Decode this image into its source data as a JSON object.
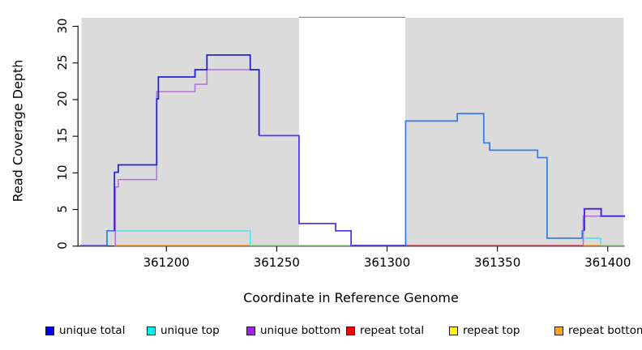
{
  "figure": {
    "y_axis": {
      "label": "Read Coverage Depth",
      "ticks": [
        0,
        5,
        10,
        15,
        20,
        25,
        30
      ]
    },
    "x_axis": {
      "label": "Coordinate in Reference Genome",
      "ticks": [
        361200,
        361250,
        361300,
        361350,
        361400
      ]
    },
    "legend": [
      {
        "label": "unique total",
        "color": "#0000F5"
      },
      {
        "label": "unique top",
        "color": "#00F0F0"
      },
      {
        "label": "unique bottom",
        "color": "#A423E8"
      },
      {
        "label": "repeat total",
        "color": "#F40000"
      },
      {
        "label": "repeat top",
        "color": "#FFF500"
      },
      {
        "label": "repeat bottom",
        "color": "#FFA321"
      }
    ],
    "colors": {
      "shade": "#DBDBDB",
      "axis": "#000000",
      "gap_border": "#909090",
      "background": "#FFFFFF"
    },
    "shaded_regions": [
      [
        361161.5,
        361260.1
      ],
      [
        361308.2,
        361407.2
      ]
    ],
    "gap_border": {
      "from": 361260.1,
      "to": 361308.2
    }
  },
  "plot_lines": [
    {
      "name": "baseline-start-violet",
      "color": "#6C5AD8",
      "width": 1.6,
      "points": [
        [
          361161,
          0
        ],
        [
          361173.1,
          0
        ]
      ]
    },
    {
      "name": "baseline-red",
      "color": "#D84E66",
      "width": 1.4,
      "points": [
        [
          361308.4,
          0
        ],
        [
          361388.4,
          0
        ]
      ]
    },
    {
      "name": "baseline-green-mid",
      "color": "#93DA93",
      "width": 1.4,
      "points": [
        [
          361237.5,
          0
        ],
        [
          361284,
          0
        ]
      ]
    },
    {
      "name": "baseline-green-right",
      "color": "#93DA93",
      "width": 1.4,
      "points": [
        [
          361397,
          0
        ],
        [
          361407.5,
          0
        ]
      ]
    },
    {
      "name": "baseline-orange-left",
      "color": "#FF9E2A",
      "width": 1.6,
      "points": [
        [
          361176.5,
          0
        ],
        [
          361237.5,
          0
        ]
      ]
    },
    {
      "name": "baseline-orange-right",
      "color": "#FF9E2A",
      "width": 1.6,
      "points": [
        [
          361388.8,
          0
        ],
        [
          361397,
          0
        ]
      ]
    },
    {
      "name": "cyan-left",
      "color": "#45E2E8",
      "width": 1.4,
      "points": [
        [
          361173.1,
          2
        ],
        [
          361238,
          2
        ],
        [
          361238,
          0.15
        ]
      ]
    },
    {
      "name": "cyan-right",
      "color": "#45E2E8",
      "width": 1.4,
      "points": [
        [
          361389.4,
          1
        ],
        [
          361396.8,
          1
        ],
        [
          361396.8,
          0.15
        ]
      ]
    },
    {
      "name": "purple-left",
      "color": "#B66BDF",
      "width": 1.5,
      "points": [
        [
          361176.9,
          0
        ],
        [
          361176.9,
          8
        ],
        [
          361178.2,
          8
        ],
        [
          361178.2,
          9
        ],
        [
          361195.6,
          9
        ],
        [
          361195.6,
          21
        ],
        [
          361213,
          21
        ],
        [
          361213,
          22
        ],
        [
          361218.4,
          22
        ],
        [
          361218.4,
          24
        ],
        [
          361242,
          24
        ],
        [
          361242,
          15
        ]
      ]
    },
    {
      "name": "purple-right",
      "color": "#B66BDF",
      "width": 1.5,
      "points": [
        [
          361388.9,
          0
        ],
        [
          361388.9,
          4
        ],
        [
          361407.5,
          4
        ]
      ]
    },
    {
      "name": "blue-left-rise",
      "color": "#2F86EC",
      "width": 1.8,
      "points": [
        [
          361173.1,
          0
        ],
        [
          361173.1,
          2
        ],
        [
          361176.5,
          2
        ]
      ]
    },
    {
      "name": "blue-left-main",
      "color": "#2222D8",
      "width": 1.8,
      "points": [
        [
          361176.5,
          2
        ],
        [
          361176.5,
          10
        ],
        [
          361178.2,
          10
        ],
        [
          361178.2,
          11
        ],
        [
          361195.6,
          11
        ],
        [
          361195.6,
          20
        ],
        [
          361196.4,
          20
        ],
        [
          361196.4,
          23
        ],
        [
          361213,
          23
        ],
        [
          361213,
          24
        ],
        [
          361218.4,
          24
        ],
        [
          361218.4,
          26
        ],
        [
          361238,
          26
        ],
        [
          361238,
          24
        ],
        [
          361242,
          24
        ],
        [
          361242,
          15
        ]
      ]
    },
    {
      "name": "blue-gap-violet",
      "color": "#5638E0",
      "width": 1.8,
      "points": [
        [
          361242,
          15
        ],
        [
          361260.1,
          15
        ],
        [
          361260.1,
          3
        ],
        [
          361276.7,
          3
        ],
        [
          361276.7,
          2
        ],
        [
          361283.7,
          2
        ],
        [
          361283.7,
          0
        ],
        [
          361308,
          0
        ]
      ]
    },
    {
      "name": "blue-right-main",
      "color": "#3D7DE8",
      "width": 1.8,
      "points": [
        [
          361308.4,
          0
        ],
        [
          361308.4,
          17
        ],
        [
          361331.8,
          17
        ],
        [
          361331.8,
          18
        ],
        [
          361343.8,
          18
        ],
        [
          361343.8,
          14
        ],
        [
          361346.5,
          14
        ],
        [
          361346.5,
          13
        ],
        [
          361368.2,
          13
        ],
        [
          361368.2,
          12
        ],
        [
          361372.5,
          12
        ],
        [
          361372.5,
          1
        ],
        [
          361388.4,
          1
        ],
        [
          361388.4,
          2
        ],
        [
          361389.4,
          2
        ]
      ]
    },
    {
      "name": "blue-end-violet",
      "color": "#4B2BDE",
      "width": 2.0,
      "points": [
        [
          361389.4,
          2
        ],
        [
          361389.4,
          5
        ],
        [
          361397,
          5
        ],
        [
          361397,
          4
        ],
        [
          361407.8,
          4
        ]
      ]
    }
  ],
  "chart_data": {
    "type": "line",
    "step": true,
    "title": "",
    "xlabel": "Coordinate in Reference Genome",
    "ylabel": "Read Coverage Depth",
    "xlim": [
      361161,
      361408
    ],
    "ylim": [
      0,
      31
    ],
    "x_ticks": [
      361200,
      361250,
      361300,
      361350,
      361400
    ],
    "y_ticks": [
      0,
      5,
      10,
      15,
      20,
      25,
      30
    ],
    "legend_position": "bottom",
    "grid": false,
    "shaded_background_regions": [
      [
        361161,
        361260
      ],
      [
        361308,
        361407
      ]
    ],
    "series": [
      {
        "name": "unique total",
        "color": "#0000F5",
        "step_points": [
          [
            361161,
            0
          ],
          [
            361173,
            2
          ],
          [
            361176,
            10
          ],
          [
            361178,
            11
          ],
          [
            361195,
            20
          ],
          [
            361196,
            23
          ],
          [
            361213,
            24
          ],
          [
            361218,
            26
          ],
          [
            361238,
            24
          ],
          [
            361242,
            15
          ],
          [
            361260,
            3
          ],
          [
            361277,
            2
          ],
          [
            361284,
            0
          ],
          [
            361308,
            17
          ],
          [
            361332,
            18
          ],
          [
            361344,
            14
          ],
          [
            361346,
            13
          ],
          [
            361368,
            12
          ],
          [
            361372,
            1
          ],
          [
            361388,
            2
          ],
          [
            361389,
            5
          ],
          [
            361397,
            4
          ],
          [
            361408,
            4
          ]
        ]
      },
      {
        "name": "unique top",
        "color": "#00F0F0",
        "step_points": [
          [
            361161,
            0
          ],
          [
            361173,
            2
          ],
          [
            361238,
            0
          ],
          [
            361308,
            17
          ],
          [
            361332,
            18
          ],
          [
            361344,
            14
          ],
          [
            361346,
            13
          ],
          [
            361368,
            12
          ],
          [
            361372,
            1
          ],
          [
            361388,
            2
          ],
          [
            361389,
            1
          ],
          [
            361397,
            0
          ],
          [
            361408,
            0
          ]
        ]
      },
      {
        "name": "unique bottom",
        "color": "#A423E8",
        "step_points": [
          [
            361161,
            0
          ],
          [
            361177,
            8
          ],
          [
            361178,
            9
          ],
          [
            361196,
            21
          ],
          [
            361213,
            22
          ],
          [
            361218,
            24
          ],
          [
            361242,
            15
          ],
          [
            361260,
            3
          ],
          [
            361277,
            2
          ],
          [
            361284,
            0
          ],
          [
            361389,
            4
          ],
          [
            361408,
            4
          ]
        ]
      },
      {
        "name": "repeat total",
        "color": "#F40000",
        "step_points": [
          [
            361161,
            0
          ],
          [
            361408,
            0
          ]
        ]
      },
      {
        "name": "repeat top",
        "color": "#FFF500",
        "step_points": [
          [
            361161,
            0
          ],
          [
            361408,
            0
          ]
        ]
      },
      {
        "name": "repeat bottom",
        "color": "#FFA321",
        "step_points": [
          [
            361161,
            0
          ],
          [
            361388,
            0
          ],
          [
            361389,
            0
          ],
          [
            361397,
            0
          ],
          [
            361408,
            0
          ]
        ]
      }
    ]
  }
}
